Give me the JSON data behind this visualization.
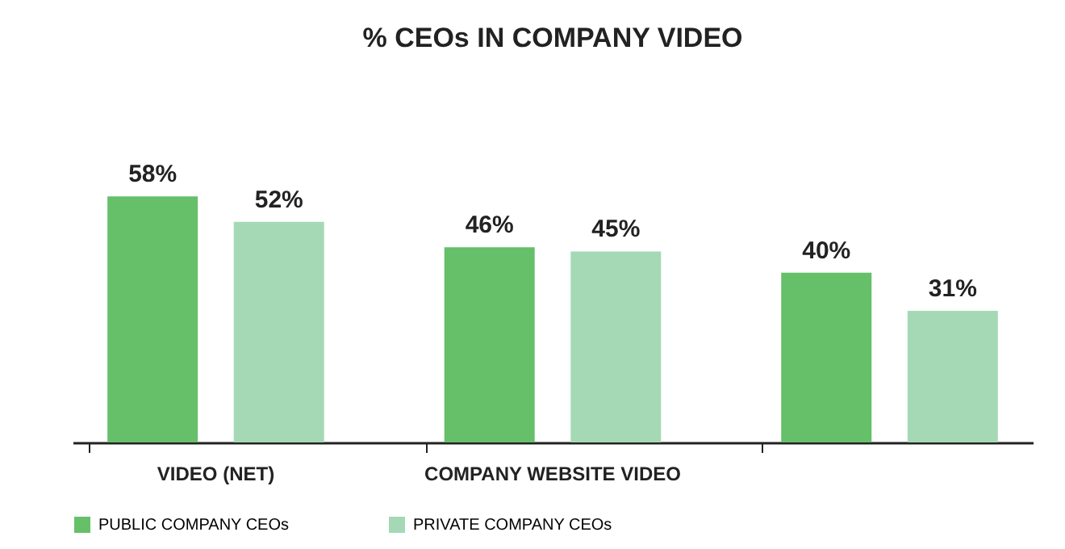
{
  "chart_data": {
    "type": "bar",
    "title": "% CEOs IN COMPANY VIDEO",
    "categories": [
      "VIDEO (NET)",
      "COMPANY WEBSITE VIDEO",
      null
    ],
    "series": [
      {
        "name": "PUBLIC COMPANY CEOs",
        "color": "#66bf69",
        "values": [
          58,
          46,
          40
        ],
        "value_labels": [
          "58%",
          "46%",
          "40%"
        ]
      },
      {
        "name": "PRIVATE COMPANY CEOs",
        "color": "#a5d9b6",
        "values": [
          52,
          45,
          31
        ],
        "value_labels": [
          "52%",
          "45%",
          "31%"
        ]
      }
    ],
    "legend": "bottom",
    "tick_labels": "x"
  }
}
